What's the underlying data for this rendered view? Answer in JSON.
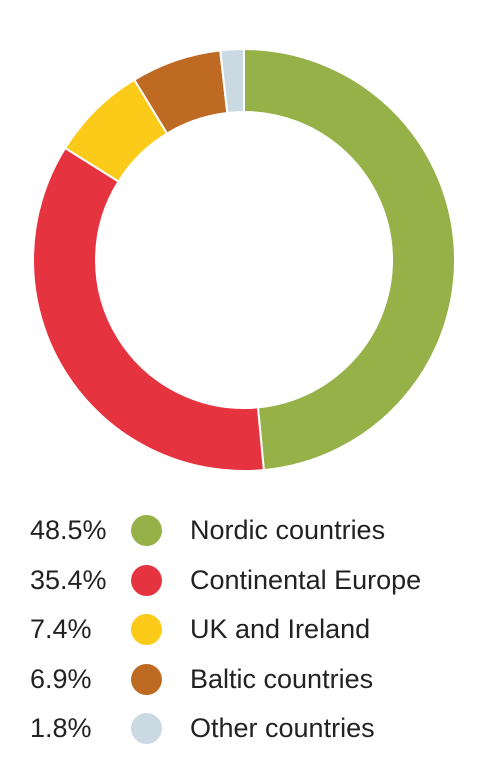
{
  "chart_data": {
    "type": "pie",
    "donut": true,
    "title": "",
    "slices": [
      {
        "label": "Nordic countries",
        "value": 48.5,
        "value_label": "48.5%",
        "color": "#97b149"
      },
      {
        "label": "Continental Europe",
        "value": 35.4,
        "value_label": "35.4%",
        "color": "#e5333f"
      },
      {
        "label": "UK and Ireland",
        "value": 7.4,
        "value_label": "7.4%",
        "color": "#fccb1a"
      },
      {
        "label": "Baltic countries",
        "value": 6.9,
        "value_label": "6.9%",
        "color": "#be6a22"
      },
      {
        "label": "Other countries",
        "value": 1.8,
        "value_label": "1.8%",
        "color": "#cbd9e3"
      }
    ],
    "legend_position": "bottom"
  }
}
